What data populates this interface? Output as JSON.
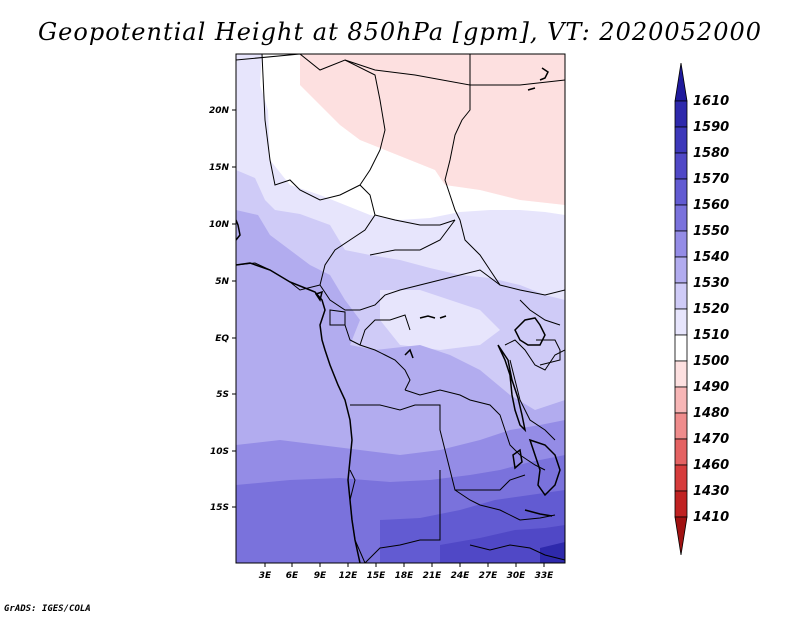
{
  "title": "Geopotential Height at 850hPa [gpm], VT: 2020052000",
  "credit": "GrADS: IGES/COLA",
  "map": {
    "lon_labels": [
      "3E",
      "6E",
      "9E",
      "12E",
      "15E",
      "18E",
      "21E",
      "24E",
      "27E",
      "30E",
      "33E"
    ],
    "lat_labels": [
      "20N",
      "15N",
      "10N",
      "5N",
      "EQ",
      "5S",
      "10S",
      "15S"
    ],
    "field": "Geopotential Height",
    "level": "850hPa",
    "units": "gpm",
    "valid_time": "2020052000"
  },
  "colorbar": {
    "levels": [
      "1610",
      "1590",
      "1580",
      "1570",
      "1560",
      "1550",
      "1540",
      "1530",
      "1520",
      "1510",
      "1500",
      "1490",
      "1480",
      "1470",
      "1460",
      "1430",
      "1410"
    ],
    "colors": [
      "#1f1a9c",
      "#2e29ac",
      "#3d38ba",
      "#5048c6",
      "#625bd2",
      "#7a72dc",
      "#948ce6",
      "#b2acef",
      "#cfcbf7",
      "#e7e5fc",
      "#ffffff",
      "#fde0e0",
      "#f7b6b6",
      "#ef8c8c",
      "#e46262",
      "#d63c3c",
      "#c02222",
      "#a01212"
    ]
  },
  "colors": {
    "background": "#ffffff",
    "frame": "#000000"
  }
}
